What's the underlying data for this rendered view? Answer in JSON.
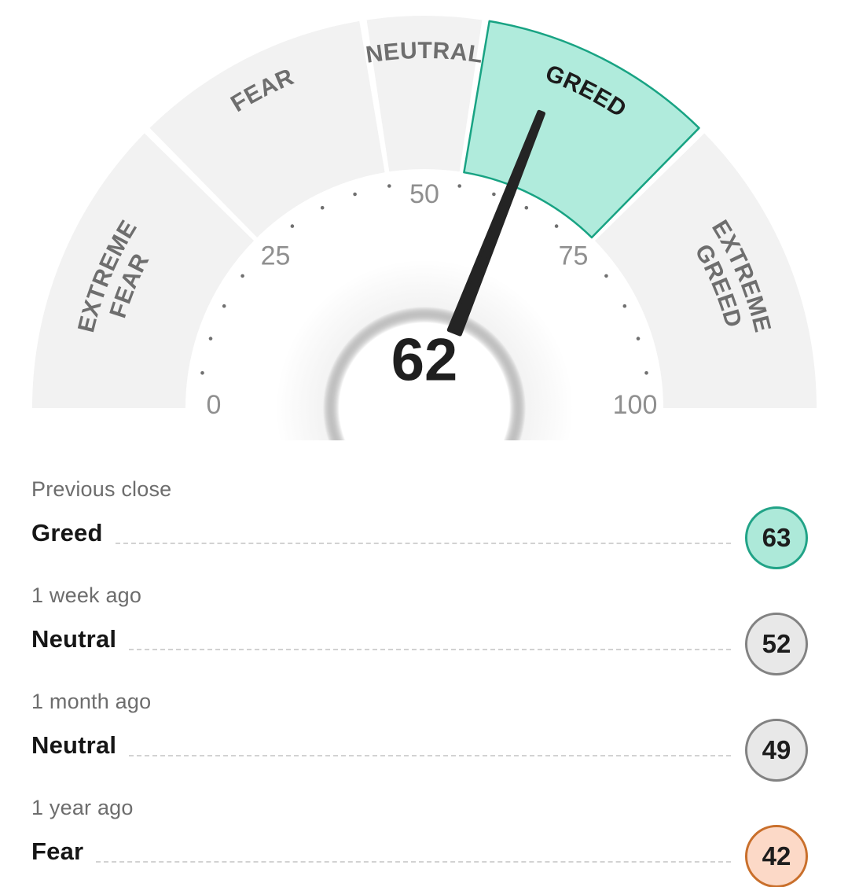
{
  "chart_data": {
    "type": "gauge",
    "title": "Fear and Greed Index gauge",
    "value": 62,
    "value_label": "62",
    "min": 0,
    "max": 100,
    "tick_values": [
      0,
      25,
      50,
      75,
      100
    ],
    "tick_labels": [
      "0",
      "25",
      "50",
      "75",
      "100"
    ],
    "dot_interval": 5,
    "segments": [
      {
        "name": "extreme-fear",
        "lines": [
          "EXTREME",
          "FEAR"
        ],
        "from": 0,
        "to": 25,
        "active": false
      },
      {
        "name": "fear",
        "lines": [
          "FEAR"
        ],
        "from": 25,
        "to": 45,
        "active": false
      },
      {
        "name": "neutral",
        "lines": [
          "NEUTRAL"
        ],
        "from": 45,
        "to": 55,
        "active": false
      },
      {
        "name": "greed",
        "lines": [
          "GREED"
        ],
        "from": 55,
        "to": 75,
        "active": true
      },
      {
        "name": "extreme-greed",
        "lines": [
          "EXTREME",
          "GREED"
        ],
        "from": 75,
        "to": 100,
        "active": false
      }
    ],
    "colors": {
      "segment_inactive": "#f2f2f2",
      "segment_active_fill": "#b0ebdc",
      "segment_active_stroke": "#18a383",
      "segment_label": "#6e6e6e",
      "segment_label_active": "#1c1c1c",
      "needle": "#242424",
      "tick_dot": "#707070",
      "tick_label": "#8f8f8f",
      "center_value": "#1f1f1f"
    }
  },
  "history": {
    "rows": [
      {
        "period": "Previous close",
        "label": "Greed",
        "value": "63",
        "tone": "greed"
      },
      {
        "period": "1 week ago",
        "label": "Neutral",
        "value": "52",
        "tone": "neutral"
      },
      {
        "period": "1 month ago",
        "label": "Neutral",
        "value": "49",
        "tone": "neutral"
      },
      {
        "period": "1 year ago",
        "label": "Fear",
        "value": "42",
        "tone": "fear"
      }
    ]
  },
  "badge_colors": {
    "greed": {
      "fill": "#ade9d9",
      "border": "#21a387"
    },
    "neutral": {
      "fill": "#e8e8e8",
      "border": "#828282"
    },
    "fear": {
      "fill": "#fcd9c7",
      "border": "#c96f2b"
    }
  }
}
